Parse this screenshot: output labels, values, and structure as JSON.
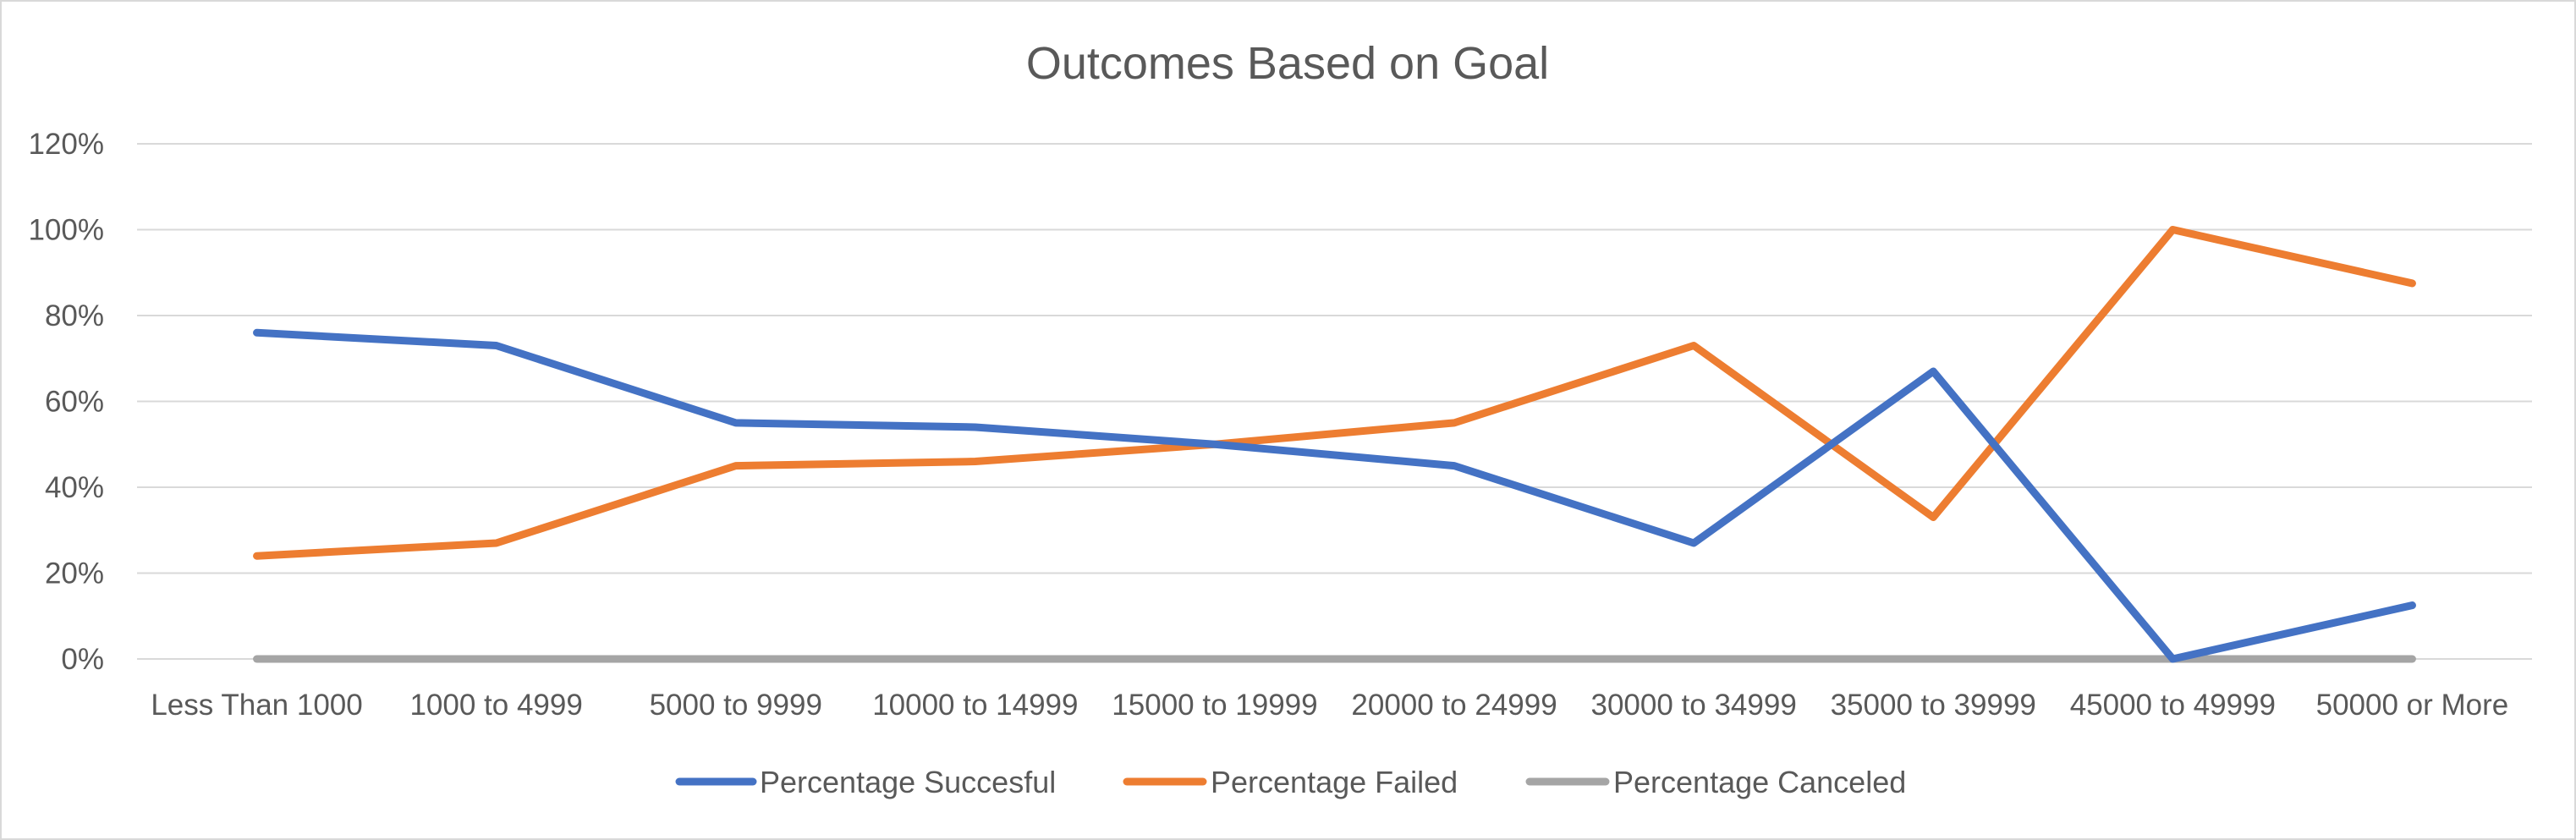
{
  "chart_data": {
    "type": "line",
    "title": "Outcomes Based on Goal",
    "xlabel": "",
    "ylabel": "",
    "categories": [
      "Less Than 1000",
      "1000 to 4999",
      "5000 to 9999",
      "10000 to 14999",
      "15000 to 19999",
      "20000 to 24999",
      "30000 to 34999",
      "35000 to 39999",
      "45000 to 49999",
      "50000 or More"
    ],
    "series": [
      {
        "name": "Percentage Succesful",
        "color": "#4472c4",
        "values": [
          76,
          73,
          55,
          54,
          50,
          45,
          27,
          67,
          0,
          12.5
        ]
      },
      {
        "name": "Percentage Failed",
        "color": "#ed7d31",
        "values": [
          24,
          27,
          45,
          46,
          50,
          55,
          73,
          33,
          100,
          87.5
        ]
      },
      {
        "name": "Percentage Canceled",
        "color": "#a5a5a5",
        "values": [
          0,
          0,
          0,
          0,
          0,
          0,
          0,
          0,
          0,
          0
        ]
      }
    ],
    "ylim": [
      0,
      120
    ],
    "yticks": [
      0,
      20,
      40,
      60,
      80,
      100,
      120
    ],
    "ytick_labels": [
      "0%",
      "20%",
      "40%",
      "60%",
      "80%",
      "100%",
      "120%"
    ],
    "grid": true,
    "legend_position": "bottom"
  }
}
